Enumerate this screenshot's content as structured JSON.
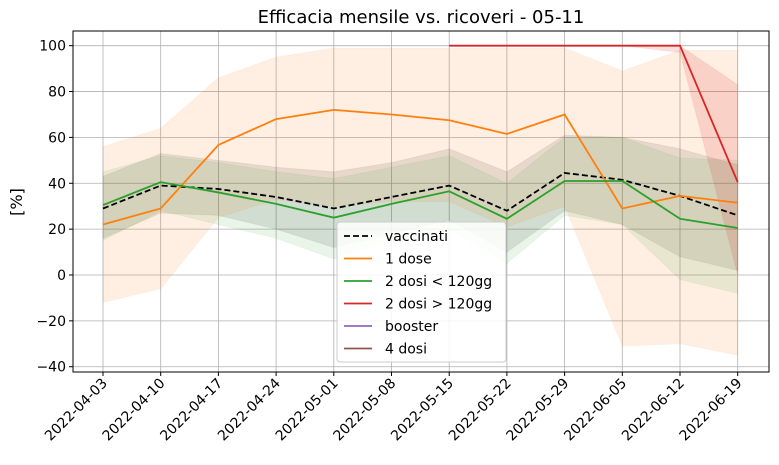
{
  "chart_data": {
    "type": "line",
    "title": "Efficacia mensile vs. ricoveri - 05-11",
    "y_label": "[%]",
    "categories": [
      "2022-04-03",
      "2022-04-10",
      "2022-04-17",
      "2022-04-24",
      "2022-05-01",
      "2022-05-08",
      "2022-05-15",
      "2022-05-22",
      "2022-05-29",
      "2022-06-05",
      "2022-06-12",
      "2022-06-19"
    ],
    "ylim": [
      -42.3,
      106.4
    ],
    "yticks": [
      {
        "value": -40,
        "label": "−40"
      },
      {
        "value": -20,
        "label": "−20"
      },
      0,
      20,
      40,
      60,
      80,
      100
    ],
    "grid": true,
    "legend": "lower center",
    "series": [
      {
        "name": "vaccinati",
        "color": "#000000",
        "linestyle": "dashed",
        "values": [
          29,
          39,
          37.5,
          34,
          29,
          34,
          39,
          28,
          44.5,
          41.5,
          34.5,
          26
        ],
        "lower": [
          16,
          27,
          26,
          20,
          12,
          18,
          24,
          10,
          28,
          22,
          8,
          2
        ],
        "upper": [
          43,
          53,
          50,
          47,
          45,
          49,
          55,
          45,
          61,
          60,
          55,
          48
        ]
      },
      {
        "name": "1 dose",
        "color": "#ff7f0e",
        "values": [
          22,
          29,
          56.7,
          68,
          72,
          70,
          67.5,
          61.5,
          70,
          29,
          34.5,
          31.5
        ],
        "lower": [
          -12,
          -6,
          25,
          33,
          30,
          32,
          32,
          21,
          30,
          -31,
          -30,
          -35
        ],
        "upper": [
          56,
          64,
          86,
          95,
          99,
          99,
          99,
          99,
          99,
          89,
          98,
          98
        ]
      },
      {
        "name": "2 dosi < 120gg",
        "color": "#2ca02c",
        "values": [
          30.5,
          40.5,
          36,
          31,
          25,
          31,
          36.5,
          24.5,
          41,
          41,
          24.5,
          20.5
        ],
        "lower": [
          15,
          28,
          22,
          16,
          7,
          15,
          20,
          5,
          26,
          22,
          -2,
          -8
        ],
        "upper": [
          45,
          52,
          49,
          45,
          42,
          47,
          52,
          40,
          60,
          60,
          51,
          50
        ]
      },
      {
        "name": "2 dosi > 120gg",
        "color": "#d62728",
        "values": [
          null,
          null,
          null,
          null,
          null,
          null,
          100,
          100,
          100,
          100,
          100,
          40.5
        ],
        "lower": [
          null,
          null,
          null,
          null,
          null,
          null,
          100,
          100,
          100,
          100,
          97,
          0
        ],
        "upper": [
          null,
          null,
          null,
          null,
          null,
          null,
          100,
          100,
          100,
          100,
          100,
          83
        ]
      },
      {
        "name": "booster",
        "color": "#9467bd",
        "values": [
          null,
          null,
          null,
          null,
          null,
          null,
          null,
          null,
          null,
          null,
          null,
          null
        ]
      },
      {
        "name": "4 dosi",
        "color": "#8c564b",
        "values": [
          null,
          null,
          null,
          null,
          null,
          null,
          null,
          null,
          null,
          null,
          null,
          null
        ]
      }
    ]
  }
}
